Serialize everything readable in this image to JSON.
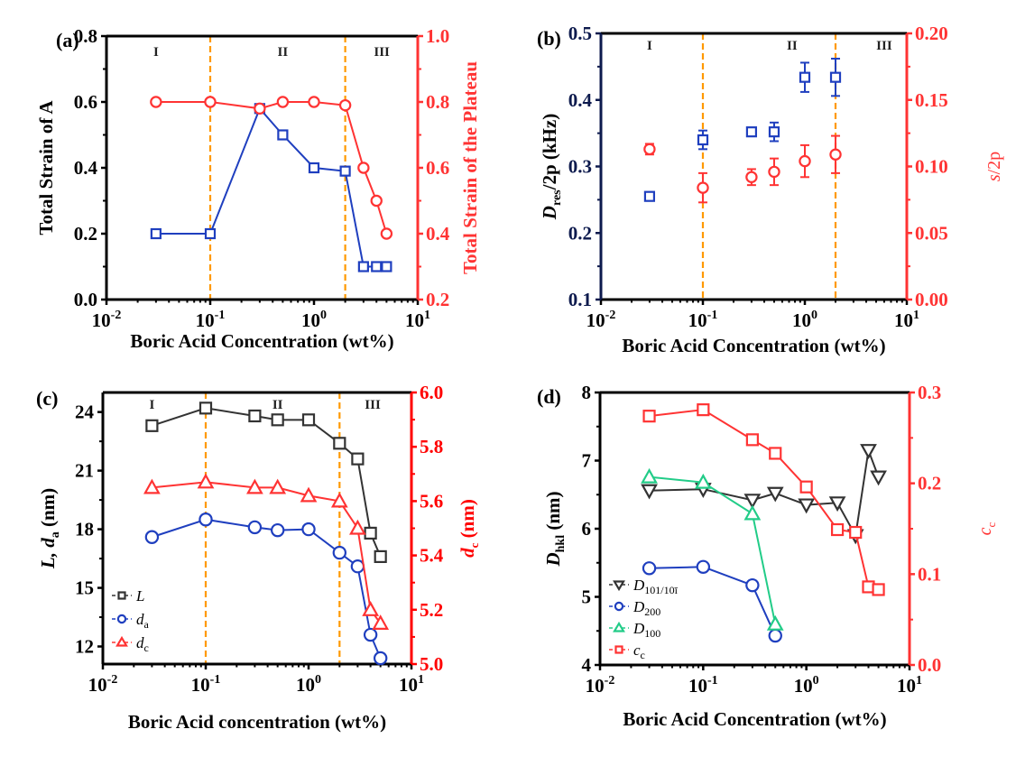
{
  "chart_data": [
    {
      "id": "a",
      "type": "line",
      "panel_label": "(a)",
      "xlabel": "Boric Acid Concentration  (wt%)",
      "xscale": "log",
      "xlim": [
        0.01,
        10
      ],
      "xticks": [
        {
          "v": 0.01,
          "base": "10",
          "exp": "-2"
        },
        {
          "v": 0.1,
          "base": "10",
          "exp": "-1"
        },
        {
          "v": 1,
          "base": "10",
          "exp": "0"
        },
        {
          "v": 10,
          "base": "10",
          "exp": "1"
        }
      ],
      "ylabel_left": "Total Strain of A",
      "ylim_left": [
        0,
        0.8
      ],
      "yticks_left": [
        "0.0",
        "0.2",
        "0.4",
        "0.6",
        "0.8"
      ],
      "ylabel_right": "Total Strain of the Plateau",
      "ylim_right": [
        0.2,
        1.0
      ],
      "yticks_right": [
        "0.2",
        "0.4",
        "0.6",
        "0.8",
        "1.0"
      ],
      "left_axis_color": "#000000",
      "right_axis_color": "#ff3333",
      "vlines": [
        0.1,
        2
      ],
      "vline_color": "#ff9900",
      "regions": [
        {
          "label": "I",
          "x": 0.03
        },
        {
          "label": "II",
          "x": 0.5
        },
        {
          "label": "III",
          "x": 4.5
        }
      ],
      "series": [
        {
          "name": "Total Strain of A",
          "axis": "left",
          "marker": "square",
          "color": "#1f3fbf",
          "x": [
            0.03,
            0.1,
            0.3,
            0.5,
            1,
            2,
            3,
            4,
            5
          ],
          "y": [
            0.2,
            0.2,
            0.58,
            0.5,
            0.4,
            0.39,
            0.1,
            0.1,
            0.1
          ]
        },
        {
          "name": "Total Strain of the Plateau",
          "axis": "right",
          "marker": "circle",
          "color": "#ff3333",
          "x": [
            0.03,
            0.1,
            0.3,
            0.5,
            1,
            2,
            3,
            4,
            5
          ],
          "y": [
            0.8,
            0.8,
            0.78,
            0.8,
            0.8,
            0.79,
            0.6,
            0.5,
            0.4
          ]
        }
      ]
    },
    {
      "id": "b",
      "type": "scatter",
      "panel_label": "(b)",
      "xlabel": "Boric Acid Concentration (wt%)",
      "xscale": "log",
      "xlim": [
        0.01,
        10
      ],
      "xticks": [
        {
          "v": 0.01,
          "base": "10",
          "exp": "-2"
        },
        {
          "v": 0.1,
          "base": "10",
          "exp": "-1"
        },
        {
          "v": 1,
          "base": "10",
          "exp": "0"
        },
        {
          "v": 10,
          "base": "10",
          "exp": "1"
        }
      ],
      "ylabel_left": {
        "main": "D",
        "sub": "res",
        "rest": "/2p (kHz)"
      },
      "ylim_left": [
        0.1,
        0.5
      ],
      "yticks_left": [
        "0.1",
        "0.2",
        "0.3",
        "0.4",
        "0.5"
      ],
      "ylabel_right": "s/2p",
      "ylim_right": [
        0,
        0.2
      ],
      "yticks_right": [
        "0.00",
        "0.05",
        "0.10",
        "0.15",
        "0.20"
      ],
      "left_axis_color": "#0d1a4d",
      "right_axis_color": "#ff3333",
      "vlines": [
        0.1,
        2
      ],
      "vline_color": "#ff9900",
      "regions": [
        {
          "label": "I",
          "x": 0.03
        },
        {
          "label": "II",
          "x": 0.75
        },
        {
          "label": "III",
          "x": 6.0
        }
      ],
      "series": [
        {
          "name": "Dres/2p",
          "axis": "left",
          "marker": "square",
          "color": "#1f3fbf",
          "x": [
            0.03,
            0.1,
            0.3,
            0.5,
            1,
            2
          ],
          "y": [
            0.255,
            0.34,
            0.352,
            0.352,
            0.434,
            0.434
          ],
          "err": [
            0.004,
            0.014,
            0.006,
            0.014,
            0.022,
            0.028
          ]
        },
        {
          "name": "s/2p",
          "axis": "right",
          "marker": "circle",
          "color": "#ff3333",
          "x": [
            0.03,
            0.1,
            0.3,
            0.5,
            1,
            2
          ],
          "y": [
            0.113,
            0.084,
            0.092,
            0.096,
            0.104,
            0.109
          ],
          "err": [
            0.004,
            0.011,
            0.006,
            0.01,
            0.012,
            0.014
          ]
        }
      ]
    },
    {
      "id": "c",
      "type": "line",
      "panel_label": "(c)",
      "xlabel": "Boric Acid concentration (wt%)",
      "xscale": "log",
      "xlim": [
        0.01,
        10
      ],
      "xticks": [
        {
          "v": 0.01,
          "base": "10",
          "exp": "-2"
        },
        {
          "v": 0.1,
          "base": "10",
          "exp": "-1"
        },
        {
          "v": 1,
          "base": "10",
          "exp": "0"
        },
        {
          "v": 10,
          "base": "10",
          "exp": "1"
        }
      ],
      "ylabel_left": {
        "parts": [
          "L, ",
          "d",
          "a",
          " (nm)"
        ]
      },
      "ylim_left": [
        11.1,
        25.0
      ],
      "yticks_left_values": [
        12,
        15,
        18,
        21,
        24
      ],
      "ylabel_right": {
        "main": "d",
        "sub": "c",
        "rest": " (nm)"
      },
      "ylim_right": [
        5.0,
        6.0
      ],
      "yticks_right": [
        "5.0",
        "5.2",
        "5.4",
        "5.6",
        "5.8",
        "6.0"
      ],
      "left_axis_color": "#000000",
      "right_axis_color": "#ff0000",
      "vlines": [
        0.1,
        2
      ],
      "vline_color": "#ff9900",
      "regions": [
        {
          "label": "I",
          "x": 0.03
        },
        {
          "label": "II",
          "x": 0.5
        },
        {
          "label": "III",
          "x": 4.2
        }
      ],
      "legend": {
        "placement": "lower-left",
        "entries": [
          {
            "main": "L",
            "sub": ""
          },
          {
            "main": "d",
            "sub": "a"
          },
          {
            "main": "d",
            "sub": "c"
          }
        ]
      },
      "series": [
        {
          "name": "L",
          "axis": "left",
          "marker": "square",
          "color": "#333333",
          "x": [
            0.03,
            0.1,
            0.3,
            0.5,
            1,
            2,
            3,
            4,
            5
          ],
          "y": [
            23.3,
            24.2,
            23.8,
            23.6,
            23.6,
            22.4,
            21.6,
            17.8,
            16.6
          ]
        },
        {
          "name": "da",
          "axis": "left",
          "marker": "circle",
          "color": "#1f3fbf",
          "x": [
            0.03,
            0.1,
            0.3,
            0.5,
            1,
            2,
            3,
            4,
            5
          ],
          "y": [
            17.6,
            18.5,
            18.1,
            17.95,
            18.0,
            16.8,
            16.1,
            12.6,
            11.4
          ]
        },
        {
          "name": "dc",
          "axis": "right",
          "marker": "triangle-up",
          "color": "#ff3333",
          "x": [
            0.03,
            0.1,
            0.3,
            0.5,
            1,
            2,
            3,
            4,
            5
          ],
          "y": [
            5.65,
            5.67,
            5.65,
            5.65,
            5.62,
            5.6,
            5.5,
            5.2,
            5.15
          ]
        }
      ]
    },
    {
      "id": "d",
      "type": "line",
      "panel_label": "(d)",
      "xlabel": "Boric Acid Concentration (wt%)",
      "xscale": "log",
      "xlim": [
        0.01,
        10
      ],
      "xticks": [
        {
          "v": 0.01,
          "base": "10",
          "exp": "-2"
        },
        {
          "v": 0.1,
          "base": "10",
          "exp": "-1"
        },
        {
          "v": 1,
          "base": "10",
          "exp": "0"
        },
        {
          "v": 10,
          "base": "10",
          "exp": "1"
        }
      ],
      "ylabel_left": {
        "main": "D",
        "sub": "hkl",
        "rest": " (nm)"
      },
      "ylim_left": [
        4,
        8
      ],
      "yticks_left": [
        "4",
        "5",
        "6",
        "7",
        "8"
      ],
      "ylabel_right": {
        "main": "c",
        "sub": "c",
        "rest": ""
      },
      "ylim_right": [
        0,
        0.3
      ],
      "yticks_right": [
        "0.0",
        "0.1",
        "0.2",
        "0.3"
      ],
      "left_axis_color": "#000000",
      "right_axis_color": "#ff3333",
      "legend": {
        "placement": "lower-left",
        "entries": [
          {
            "main": "D",
            "sub": "101/10ī"
          },
          {
            "main": "D",
            "sub": "200"
          },
          {
            "main": "D",
            "sub": "100"
          },
          {
            "main": "c",
            "sub": "c"
          }
        ]
      },
      "series": [
        {
          "name": "D101/101",
          "axis": "left",
          "marker": "triangle-down",
          "color": "#333333",
          "x": [
            0.03,
            0.1,
            0.3,
            0.5,
            1,
            2,
            3,
            4,
            5
          ],
          "y": [
            6.56,
            6.58,
            6.42,
            6.52,
            6.35,
            6.38,
            5.9,
            7.15,
            6.76
          ]
        },
        {
          "name": "D200",
          "axis": "left",
          "marker": "circle",
          "color": "#1f3fbf",
          "x": [
            0.03,
            0.1,
            0.3,
            0.5
          ],
          "y": [
            5.42,
            5.44,
            5.17,
            4.43
          ]
        },
        {
          "name": "D100",
          "axis": "left",
          "marker": "triangle-up",
          "color": "#22cc88",
          "x": [
            0.03,
            0.1,
            0.3,
            0.5
          ],
          "y": [
            6.76,
            6.68,
            6.22,
            4.6
          ]
        },
        {
          "name": "cc",
          "axis": "right",
          "marker": "square",
          "color": "#ff3333",
          "x": [
            0.03,
            0.1,
            0.3,
            0.5,
            1,
            2,
            3,
            4,
            5
          ],
          "y": [
            0.274,
            0.281,
            0.248,
            0.233,
            0.196,
            0.149,
            0.146,
            0.086,
            0.083
          ]
        }
      ]
    }
  ]
}
